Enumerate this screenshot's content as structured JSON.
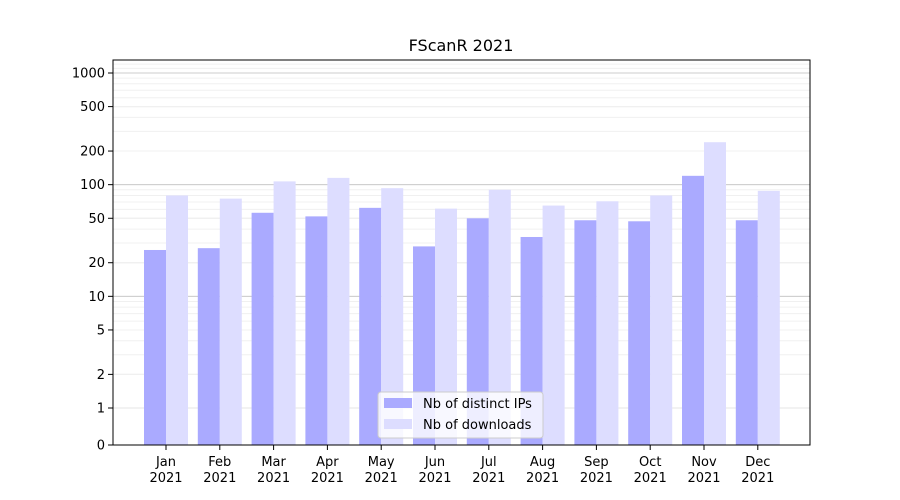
{
  "chart_data": {
    "type": "bar",
    "title": "FScanR 2021",
    "xlabel": "",
    "ylabel": "",
    "y_scale": "symlog",
    "ylim": [
      0,
      1300
    ],
    "categories": [
      [
        "Jan",
        "2021"
      ],
      [
        "Feb",
        "2021"
      ],
      [
        "Mar",
        "2021"
      ],
      [
        "Apr",
        "2021"
      ],
      [
        "May",
        "2021"
      ],
      [
        "Jun",
        "2021"
      ],
      [
        "Jul",
        "2021"
      ],
      [
        "Aug",
        "2021"
      ],
      [
        "Sep",
        "2021"
      ],
      [
        "Oct",
        "2021"
      ],
      [
        "Nov",
        "2021"
      ],
      [
        "Dec",
        "2021"
      ]
    ],
    "y_ticks": [
      0,
      1,
      2,
      5,
      10,
      20,
      50,
      100,
      200,
      500,
      1000
    ],
    "grid": true,
    "legend_position": "bottom-center",
    "series": [
      {
        "name": "Nb of distinct IPs",
        "color": "#aaaaff",
        "values": [
          26,
          27,
          56,
          52,
          62,
          28,
          50,
          34,
          48,
          47,
          120,
          48
        ]
      },
      {
        "name": "Nb of downloads",
        "color": "#ddddff",
        "values": [
          80,
          75,
          107,
          115,
          93,
          61,
          90,
          65,
          71,
          80,
          240,
          88
        ]
      }
    ]
  }
}
